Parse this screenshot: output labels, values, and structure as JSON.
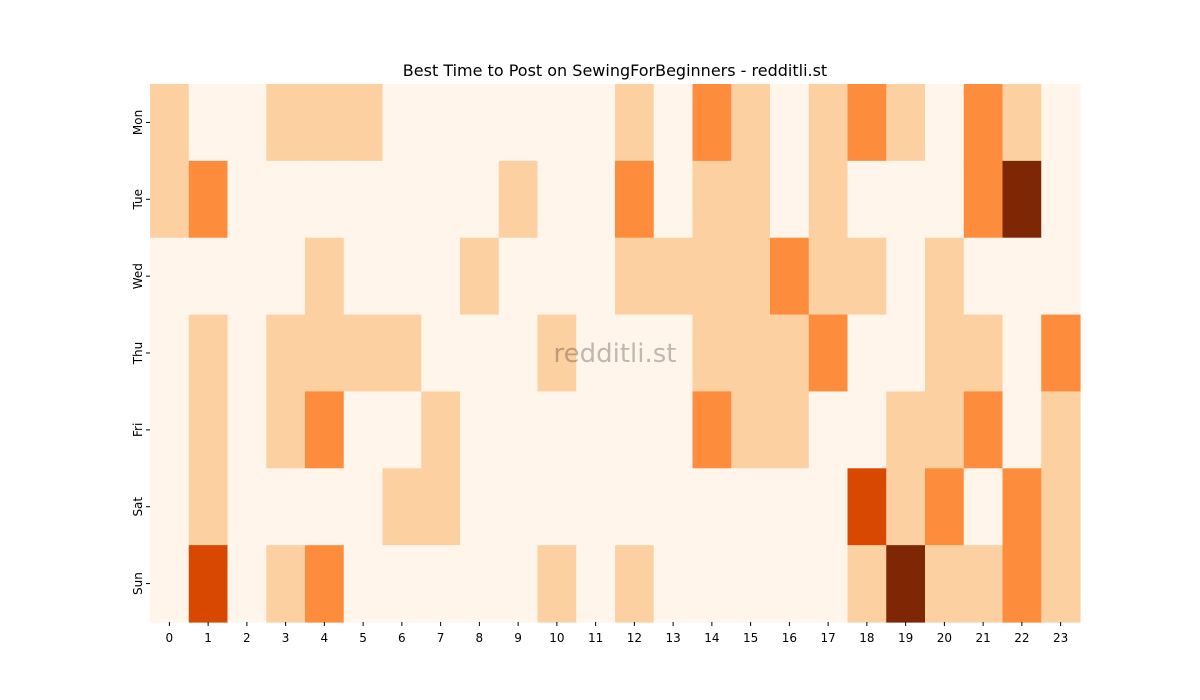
{
  "chart_data": {
    "type": "heatmap",
    "title": "Best Time to Post on SewingForBeginners - redditli.st",
    "watermark": "redditli.st",
    "xlabel": "",
    "ylabel": "",
    "x": [
      "0",
      "1",
      "2",
      "3",
      "4",
      "5",
      "6",
      "7",
      "8",
      "9",
      "10",
      "11",
      "12",
      "13",
      "14",
      "15",
      "16",
      "17",
      "18",
      "19",
      "20",
      "21",
      "22",
      "23"
    ],
    "y": [
      "Mon",
      "Tue",
      "Wed",
      "Thu",
      "Fri",
      "Sat",
      "Sun"
    ],
    "values": [
      [
        1,
        0,
        0,
        1,
        1,
        1,
        0,
        0,
        0,
        0,
        0,
        0,
        1,
        0,
        2,
        1,
        0,
        1,
        2,
        1,
        0,
        2,
        1,
        0
      ],
      [
        1,
        2,
        0,
        0,
        0,
        0,
        0,
        0,
        0,
        1,
        0,
        0,
        2,
        0,
        1,
        1,
        0,
        1,
        0,
        0,
        0,
        2,
        4,
        0
      ],
      [
        0,
        0,
        0,
        0,
        1,
        0,
        0,
        0,
        1,
        0,
        0,
        0,
        1,
        1,
        1,
        1,
        2,
        1,
        1,
        0,
        1,
        0,
        0,
        0
      ],
      [
        0,
        1,
        0,
        1,
        1,
        1,
        1,
        0,
        0,
        0,
        1,
        0,
        0,
        0,
        1,
        1,
        1,
        2,
        0,
        0,
        1,
        1,
        0,
        2
      ],
      [
        0,
        1,
        0,
        1,
        2,
        0,
        0,
        1,
        0,
        0,
        0,
        0,
        0,
        0,
        2,
        1,
        1,
        0,
        0,
        1,
        1,
        2,
        0,
        1
      ],
      [
        0,
        1,
        0,
        0,
        0,
        0,
        1,
        1,
        0,
        0,
        0,
        0,
        0,
        0,
        0,
        0,
        0,
        0,
        3,
        1,
        2,
        0,
        2,
        1
      ],
      [
        0,
        3,
        0,
        1,
        2,
        0,
        0,
        0,
        0,
        0,
        1,
        0,
        1,
        0,
        0,
        0,
        0,
        0,
        1,
        4,
        1,
        1,
        2,
        1
      ]
    ],
    "vmin": 0,
    "vmax": 4,
    "colormap": [
      "#fff5eb",
      "#fdd0a2",
      "#fd8d3c",
      "#d94801",
      "#7f2704"
    ],
    "grid": false,
    "legend": "none"
  }
}
